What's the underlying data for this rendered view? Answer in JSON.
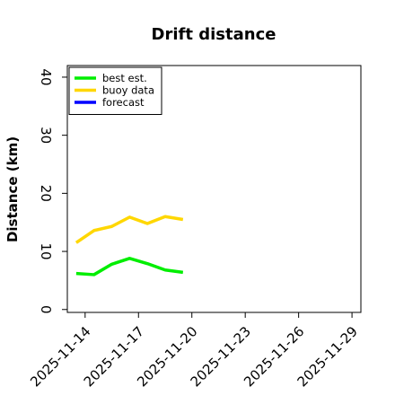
{
  "chart_data": {
    "type": "line",
    "title": "Drift distance",
    "xlabel": "",
    "ylabel": "Distance (km)",
    "ylim": [
      -0.5,
      42
    ],
    "yticks": [
      0,
      10,
      20,
      30,
      40
    ],
    "xlim": [
      "2025-11-13T00:00",
      "2025-11-29T12:00"
    ],
    "xticks": [
      {
        "date": "2025-11-14",
        "label": "2025-11-14",
        "color": "#000000"
      },
      {
        "date": "2025-11-17",
        "label": "2025-11-17",
        "color": "#000000"
      },
      {
        "date": "2025-11-20",
        "label": "2025-11-20",
        "color": "#2e8b22"
      },
      {
        "date": "2025-11-23",
        "label": "2025-11-23",
        "color": "#000000"
      },
      {
        "date": "2025-11-26",
        "label": "2025-11-26",
        "color": "#000000"
      },
      {
        "date": "2025-11-29",
        "label": "2025-11-29",
        "color": "#000000"
      }
    ],
    "grid": false,
    "legend_position": "upper-left",
    "series": [
      {
        "name": "best est.",
        "color": "#00ee00",
        "x": [
          "2025-11-13T12:00",
          "2025-11-14T12:00",
          "2025-11-15T12:00",
          "2025-11-16T12:00",
          "2025-11-17T12:00",
          "2025-11-18T12:00",
          "2025-11-19T12:00"
        ],
        "values": [
          6.2,
          6.0,
          7.8,
          8.8,
          7.9,
          6.8,
          6.4
        ]
      },
      {
        "name": "buoy data",
        "color": "#ffd700",
        "x": [
          "2025-11-13T12:00",
          "2025-11-14T12:00",
          "2025-11-15T12:00",
          "2025-11-16T12:00",
          "2025-11-17T12:00",
          "2025-11-18T12:00",
          "2025-11-19T12:00"
        ],
        "values": [
          11.5,
          13.6,
          14.3,
          15.9,
          14.8,
          16.0,
          15.5
        ]
      },
      {
        "name": "forecast",
        "color": "#0000ff",
        "x": [],
        "values": []
      }
    ]
  }
}
